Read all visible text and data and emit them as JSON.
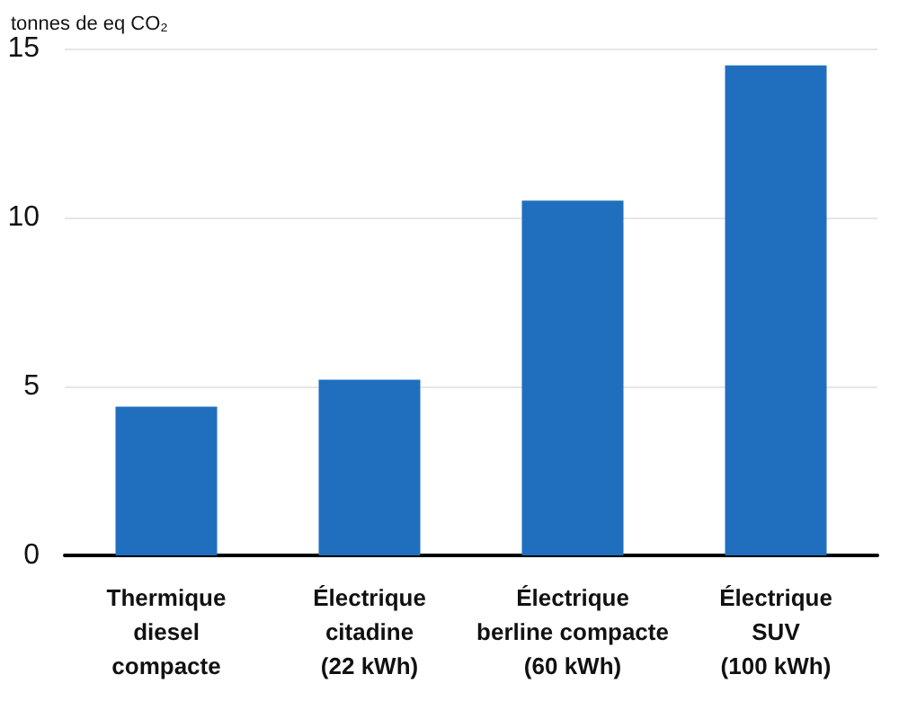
{
  "chart_data": {
    "type": "bar",
    "ylabel": "tonnes de eq CO₂",
    "categories": [
      "Thermique\ndiesel\ncompacte",
      "Électrique\ncitadine\n(22 kWh)",
      "Électrique\nberline compacte\n(60 kWh)",
      "Électrique\nSUV\n(100 kWh)"
    ],
    "values": [
      4.4,
      5.2,
      10.5,
      14.5
    ],
    "color": "#1f6fbe",
    "ylim": [
      0,
      15
    ],
    "yticks": [
      0,
      5,
      10,
      15
    ],
    "grid": "y"
  }
}
